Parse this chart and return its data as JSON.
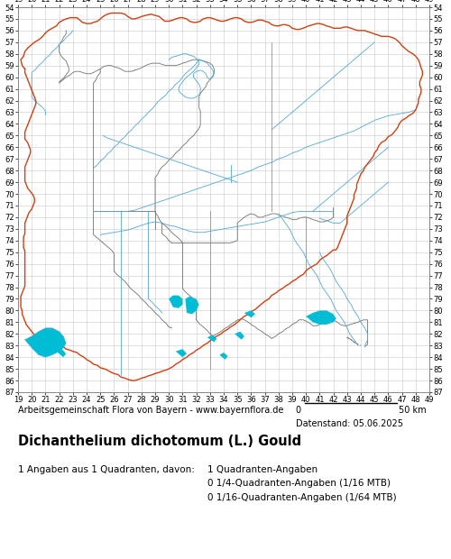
{
  "title": "Dichanthelium dichotomum (L.) Gould",
  "fig_width": 5.0,
  "fig_height": 6.2,
  "dpi": 100,
  "bg_color": "#ffffff",
  "grid_color": "#c8c8c8",
  "map_bg": "#ffffff",
  "x_min": 19,
  "x_max": 49,
  "y_min": 54,
  "y_max": 87,
  "x_ticks": [
    19,
    20,
    21,
    22,
    23,
    24,
    25,
    26,
    27,
    28,
    29,
    30,
    31,
    32,
    33,
    34,
    35,
    36,
    37,
    38,
    39,
    40,
    41,
    42,
    43,
    44,
    45,
    46,
    47,
    48,
    49
  ],
  "y_ticks": [
    54,
    55,
    56,
    57,
    58,
    59,
    60,
    61,
    62,
    63,
    64,
    65,
    66,
    67,
    68,
    69,
    70,
    71,
    72,
    73,
    74,
    75,
    76,
    77,
    78,
    79,
    80,
    81,
    82,
    83,
    84,
    85,
    86,
    87
  ],
  "footer_line1": "Arbeitsgemeinschaft Flora von Bayern - www.bayernflora.de",
  "footer_date": "Datenstand: 05.06.2025",
  "legend_line1": "1 Angaben aus 1 Quadranten, davon:",
  "legend_line2": "1 Quadranten-Angaben",
  "legend_line3": "0 1/4-Quadranten-Angaben (1/16 MTB)",
  "legend_line4": "0 1/16-Quadranten-Angaben (1/64 MTB)",
  "state_border_color": "#d04010",
  "district_border_color": "#707070",
  "river_color": "#50a8d8",
  "lake_fill_color": "#00bcd4",
  "tick_fontsize": 6.0,
  "footer_fontsize": 7.0,
  "title_fontsize": 10.5,
  "legend_fontsize": 7.5
}
